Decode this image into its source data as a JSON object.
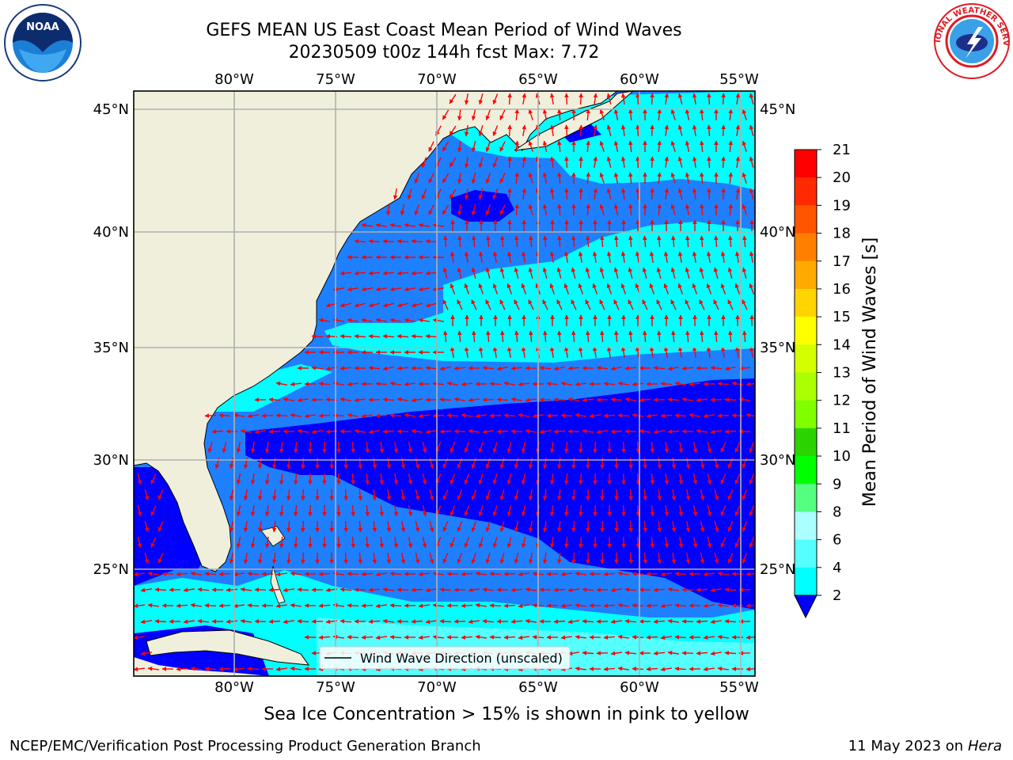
{
  "header": {
    "title_line1": "GEFS MEAN US East Coast Mean Period of Wind Waves",
    "title_line2": "20230509 t00z 144h fcst   Max: 7.72"
  },
  "map": {
    "lon_labels": [
      "80°W",
      "75°W",
      "70°W",
      "65°W",
      "60°W",
      "55°W"
    ],
    "lat_labels": [
      "45°N",
      "40°N",
      "35°N",
      "30°N",
      "25°N"
    ],
    "legend_label": "Wind Wave Direction (unscaled)",
    "arrow_color": "#ff0000",
    "land_color": "#efefdc"
  },
  "colorbar": {
    "label": "Mean Period of Wind Waves [s]",
    "ticks": [
      "21",
      "20",
      "19",
      "18",
      "17",
      "16",
      "15",
      "14",
      "13",
      "12",
      "11",
      "10",
      "9",
      "8",
      "6",
      "4",
      "2"
    ],
    "colors": [
      "#ff0000",
      "#ff2a00",
      "#ff5500",
      "#ff8000",
      "#ffaa00",
      "#ffd400",
      "#ffff00",
      "#d4ff00",
      "#aaff00",
      "#80ff00",
      "#2bd400",
      "#00ff00",
      "#55ff80",
      "#aaffff",
      "#55ffff",
      "#00ffff",
      "#0080ff",
      "#0000ff"
    ]
  },
  "notes": {
    "sea_ice": "Sea Ice Concentration > 15% is shown in pink to yellow"
  },
  "footer": {
    "left": "NCEP/EMC/Verification Post Processing Product Generation Branch",
    "date": "11 May 2023 on",
    "machine": "Hera"
  },
  "logos": {
    "noaa_text": "NOAA",
    "nws_text": "NATIONAL WEATHER SERVICE"
  }
}
